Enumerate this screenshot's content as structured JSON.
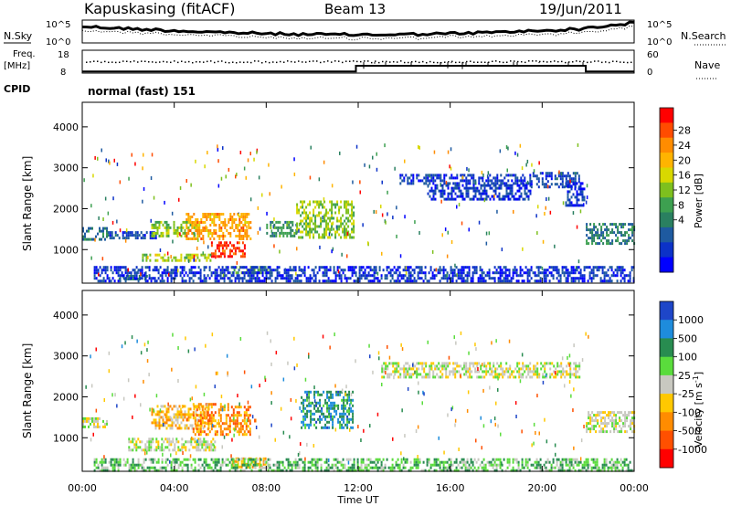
{
  "header": {
    "station": "Kapuskasing (fitACF)",
    "beam": "Beam 13",
    "date": "19/Jun/2011"
  },
  "aux": {
    "nsky_label": "N.Sky",
    "nsearch_label": "N.Search",
    "noise_ticks": [
      "10^5",
      "10^0"
    ],
    "freq_label": "Freq.",
    "freq_unit": "[MHz]",
    "freq_ticks": [
      "18",
      "8"
    ],
    "nave_label": "Nave",
    "nave_ticks": [
      "60",
      "0"
    ],
    "cpid_label": "CPID",
    "cpid_text": "normal (fast) 151",
    "freq_series": {
      "x": [
        0,
        11.9,
        11.9,
        21.9,
        21.9,
        24
      ],
      "y": [
        8.7,
        8.7,
        11.2,
        11.2,
        8.7,
        8.7
      ]
    }
  },
  "chart_data": [
    {
      "type": "heatmap",
      "title": "Power",
      "xlabel": "Time UT",
      "ylabel": "Slant Range [km]",
      "x_range": [
        0,
        24
      ],
      "y_range": [
        180,
        4600
      ],
      "x_ticks": [
        "00:00",
        "04:00",
        "08:00",
        "12:00",
        "16:00",
        "20:00",
        "00:00"
      ],
      "y_ticks": [
        "1000",
        "2000",
        "3000",
        "4000"
      ],
      "colorbar": {
        "label": "Power [dB]",
        "ticks": [
          "28",
          "24",
          "20",
          "16",
          "12",
          "8",
          "4"
        ],
        "colors": [
          "#ff0000",
          "#ff4c00",
          "#ff8c00",
          "#ffb400",
          "#d8d800",
          "#7ec01e",
          "#3da050",
          "#2a8060",
          "#1e5aa0",
          "#0c32c8",
          "#0000ff"
        ]
      },
      "regions": [
        {
          "t0": 0.0,
          "t1": 1.1,
          "r0": 1250,
          "r1": 1550,
          "level": 0.25
        },
        {
          "t0": 1.1,
          "t1": 3.2,
          "r0": 1250,
          "r1": 1450,
          "level": 0.15
        },
        {
          "t0": 3.0,
          "t1": 5.0,
          "r0": 1300,
          "r1": 1700,
          "level": 0.5
        },
        {
          "t0": 4.5,
          "t1": 7.3,
          "r0": 1250,
          "r1": 1900,
          "level": 0.75
        },
        {
          "t0": 5.6,
          "t1": 7.1,
          "r0": 850,
          "r1": 1200,
          "level": 0.95
        },
        {
          "t0": 2.6,
          "t1": 5.6,
          "r0": 750,
          "r1": 900,
          "level": 0.55
        },
        {
          "t0": 6.5,
          "t1": 8.2,
          "r0": 400,
          "r1": 600,
          "level": 0.45
        },
        {
          "t0": 1.5,
          "t1": 3.0,
          "r0": 250,
          "r1": 380,
          "level": 0.3
        },
        {
          "t0": 8.0,
          "t1": 9.3,
          "r0": 1300,
          "r1": 1700,
          "level": 0.35
        },
        {
          "t0": 9.3,
          "t1": 11.8,
          "r0": 1300,
          "r1": 2200,
          "level": 0.5
        },
        {
          "t0": 13.8,
          "t1": 19.5,
          "r0": 2600,
          "r1": 2850,
          "level": 0.12
        },
        {
          "t0": 15.0,
          "t1": 19.5,
          "r0": 2250,
          "r1": 2600,
          "level": 0.1
        },
        {
          "t0": 19.5,
          "t1": 21.6,
          "r0": 2500,
          "r1": 2900,
          "level": 0.15
        },
        {
          "t0": 21.0,
          "t1": 21.8,
          "r0": 2050,
          "r1": 2650,
          "level": 0.1
        },
        {
          "t0": 21.9,
          "t1": 24.0,
          "r0": 1150,
          "r1": 1650,
          "level": 0.28
        },
        {
          "t0": 0.5,
          "t1": 24.0,
          "r0": 200,
          "r1": 600,
          "level": 0.1
        }
      ]
    },
    {
      "type": "heatmap",
      "title": "Velocity",
      "xlabel": "Time UT",
      "ylabel": "Slant Range [km]",
      "x_range": [
        0,
        24
      ],
      "y_range": [
        180,
        4600
      ],
      "x_ticks": [
        "00:00",
        "04:00",
        "08:00",
        "12:00",
        "16:00",
        "20:00",
        "00:00"
      ],
      "y_ticks": [
        "1000",
        "2000",
        "3000",
        "4000"
      ],
      "colorbar": {
        "label": "Velocity [m s^-1]",
        "ticks": [
          "1000",
          "500",
          "100",
          "25",
          "-25",
          "-100",
          "-500",
          "-1000"
        ],
        "colors": [
          "#1e46c8",
          "#1e8cdc",
          "#288c50",
          "#5adc3c",
          "#c8c8c0",
          "#ffc800",
          "#ff8c00",
          "#ff5000",
          "#ff0000"
        ]
      },
      "regions": [
        {
          "t0": 0.0,
          "t1": 1.1,
          "r0": 1250,
          "r1": 1500,
          "level": 0.5
        },
        {
          "t0": 3.0,
          "t1": 5.5,
          "r0": 1200,
          "r1": 1800,
          "level": 0.37
        },
        {
          "t0": 4.8,
          "t1": 7.3,
          "r0": 1100,
          "r1": 1850,
          "level": 0.25
        },
        {
          "t0": 2.0,
          "t1": 5.8,
          "r0": 700,
          "r1": 1000,
          "level": 0.5
        },
        {
          "t0": 6.5,
          "t1": 8.0,
          "r0": 300,
          "r1": 520,
          "level": 0.35
        },
        {
          "t0": 9.5,
          "t1": 11.8,
          "r0": 1250,
          "r1": 2150,
          "level": 0.8
        },
        {
          "t0": 13.0,
          "t1": 21.6,
          "r0": 2500,
          "r1": 2850,
          "level": 0.5
        },
        {
          "t0": 21.9,
          "t1": 24.0,
          "r0": 1150,
          "r1": 1650,
          "level": 0.5
        },
        {
          "t0": 0.5,
          "t1": 24.0,
          "r0": 200,
          "r1": 500,
          "level": 0.65
        }
      ]
    }
  ]
}
